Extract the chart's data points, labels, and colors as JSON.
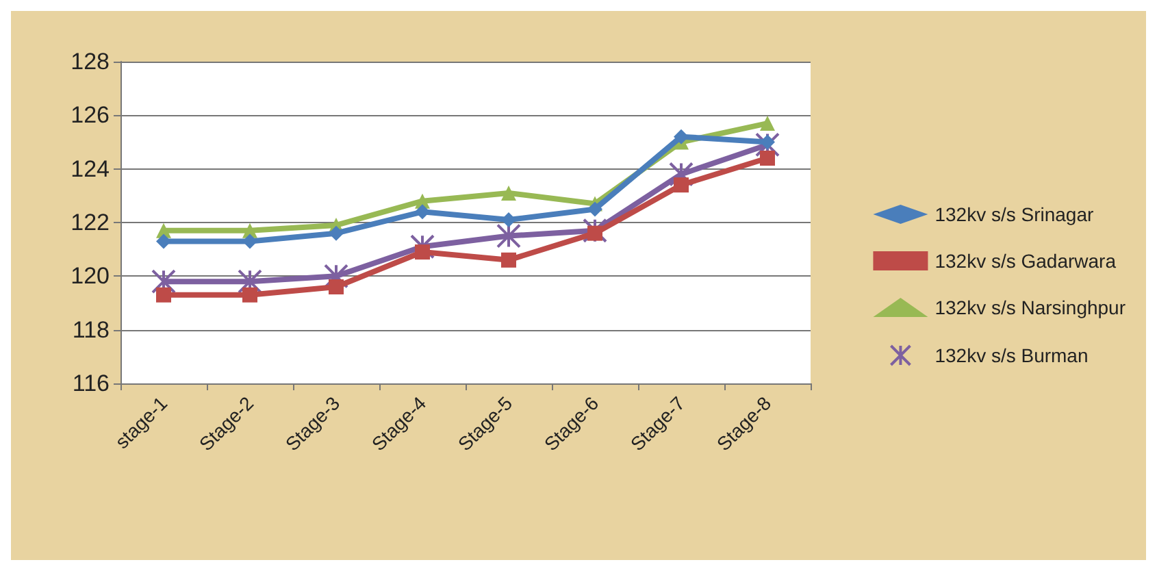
{
  "chart_data": {
    "type": "line",
    "categories": [
      "stage-1",
      "Stage-2",
      "Stage-3",
      "Stage-4",
      "Stage-5",
      "Stage-6",
      "Stage-7",
      "Stage-8"
    ],
    "series": [
      {
        "name": "132kv s/s Srinagar",
        "color": "#4a7ebb",
        "marker": "diamond",
        "values": [
          121.3,
          121.3,
          121.6,
          122.4,
          122.1,
          122.5,
          125.2,
          125.0
        ]
      },
      {
        "name": "132kv s/s Gadarwara",
        "color": "#be4b48",
        "marker": "square",
        "values": [
          119.3,
          119.3,
          119.6,
          120.9,
          120.6,
          121.6,
          123.4,
          124.4
        ]
      },
      {
        "name": "132kv s/s Narsinghpur",
        "color": "#98b954",
        "marker": "triangle",
        "values": [
          121.7,
          121.7,
          121.9,
          122.8,
          123.1,
          122.7,
          125.0,
          125.7
        ]
      },
      {
        "name": "132kv s/s Burman",
        "color": "#7d60a0",
        "marker": "cross",
        "values": [
          119.8,
          119.8,
          120.0,
          121.1,
          121.5,
          121.7,
          123.8,
          124.9
        ]
      }
    ],
    "ylim": [
      116,
      128
    ],
    "yticks": [
      116,
      118,
      120,
      122,
      124,
      126,
      128
    ],
    "grid": "y",
    "legend": "right"
  }
}
